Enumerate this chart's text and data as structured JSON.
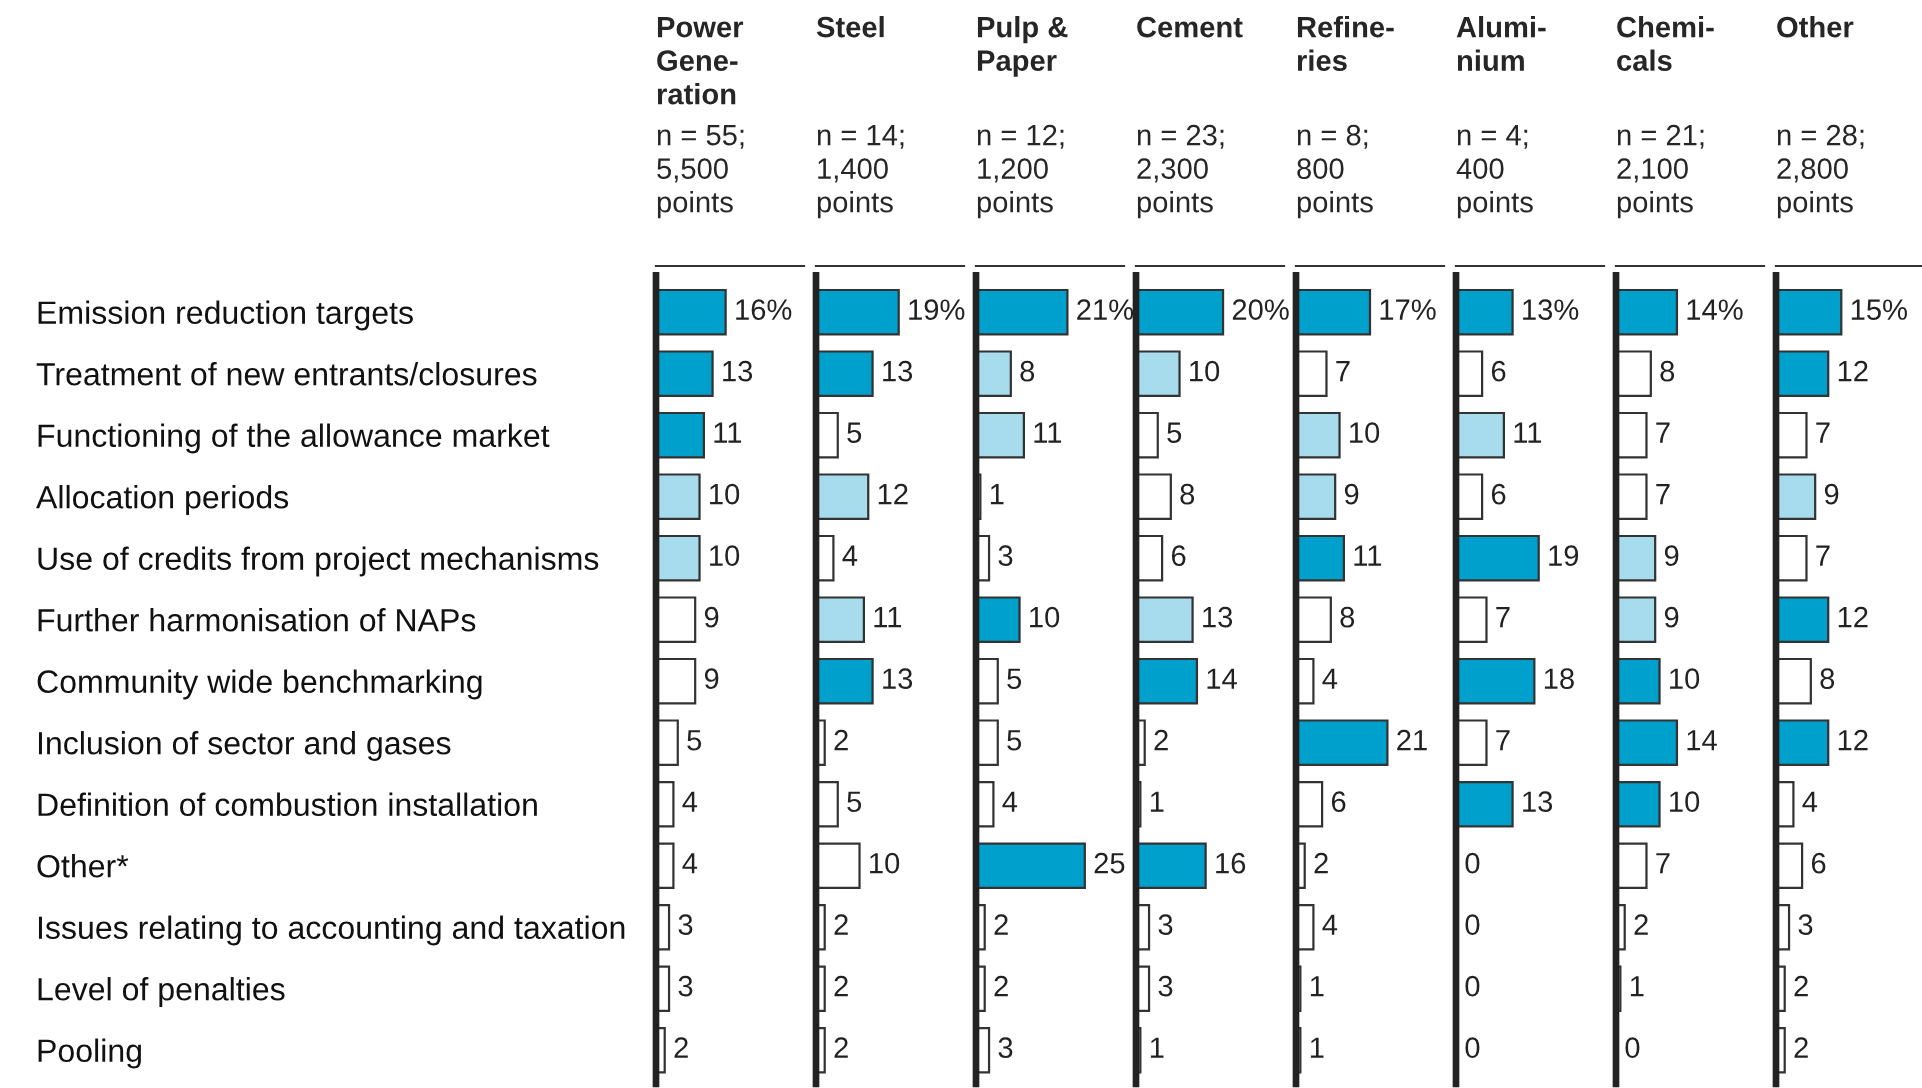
{
  "chart_data": [
    {
      "type": "bar",
      "orientation": "horizontal",
      "title": "Power\nGene-\nration",
      "subtitle": "n = 55;\n5,500\npoints",
      "tick_labels": "y",
      "xlim": [
        0,
        34
      ],
      "categories": [
        "Emission reduction targets",
        "Treatment of new entrants/closures",
        "Functioning of the allowance market",
        "Allocation periods",
        "Use of credits from project mechanisms",
        "Further harmonisation of NAPs",
        "Community wide benchmarking",
        "Inclusion of sector and gases",
        "Definition of combustion installation",
        "Other*",
        "Issues relating to accounting and taxation",
        "Level of penalties",
        "Pooling"
      ],
      "values": [
        16,
        13,
        11,
        10,
        10,
        9,
        9,
        5,
        4,
        4,
        3,
        3,
        2
      ],
      "value_labels": [
        "16%",
        "13",
        "11",
        "10",
        "10",
        "9",
        "9",
        "5",
        "4",
        "4",
        "3",
        "3",
        "2"
      ],
      "colors": [
        "#00a0cc",
        "#00a0cc",
        "#00a0cc",
        "#a6dcec",
        "#a6dcec",
        "#ffffff",
        "#ffffff",
        "#ffffff",
        "#ffffff",
        "#ffffff",
        "#ffffff",
        "#ffffff",
        "#ffffff"
      ]
    },
    {
      "type": "bar",
      "orientation": "horizontal",
      "title": "Steel",
      "subtitle": "n = 14;\n1,400\npoints",
      "tick_labels": false,
      "xlim": [
        0,
        34
      ],
      "values": [
        19,
        13,
        5,
        12,
        4,
        11,
        13,
        2,
        5,
        10,
        2,
        2,
        2
      ],
      "value_labels": [
        "19%",
        "13",
        "5",
        "12",
        "4",
        "11",
        "13",
        "2",
        "5",
        "10",
        "2",
        "2",
        "2"
      ],
      "colors": [
        "#00a0cc",
        "#00a0cc",
        "#ffffff",
        "#a6dcec",
        "#ffffff",
        "#a6dcec",
        "#00a0cc",
        "#ffffff",
        "#ffffff",
        "#ffffff",
        "#ffffff",
        "#ffffff",
        "#ffffff"
      ]
    },
    {
      "type": "bar",
      "orientation": "horizontal",
      "title": "Pulp &\nPaper",
      "subtitle": "n = 12;\n1,200\npoints",
      "tick_labels": false,
      "xlim": [
        0,
        34
      ],
      "values": [
        21,
        8,
        11,
        1,
        3,
        10,
        5,
        5,
        4,
        25,
        2,
        2,
        3
      ],
      "value_labels": [
        "21%",
        "8",
        "11",
        "1",
        "3",
        "10",
        "5",
        "5",
        "4",
        "25",
        "2",
        "2",
        "3"
      ],
      "colors": [
        "#00a0cc",
        "#a6dcec",
        "#a6dcec",
        "#ffffff",
        "#ffffff",
        "#00a0cc",
        "#ffffff",
        "#ffffff",
        "#ffffff",
        "#00a0cc",
        "#ffffff",
        "#ffffff",
        "#ffffff"
      ]
    },
    {
      "type": "bar",
      "orientation": "horizontal",
      "title": "Cement",
      "subtitle": "n = 23;\n2,300\npoints",
      "tick_labels": false,
      "xlim": [
        0,
        34
      ],
      "values": [
        20,
        10,
        5,
        8,
        6,
        13,
        14,
        2,
        1,
        16,
        3,
        3,
        1
      ],
      "value_labels": [
        "20%",
        "10",
        "5",
        "8",
        "6",
        "13",
        "14",
        "2",
        "1",
        "16",
        "3",
        "3",
        "1"
      ],
      "colors": [
        "#00a0cc",
        "#a6dcec",
        "#ffffff",
        "#ffffff",
        "#ffffff",
        "#a6dcec",
        "#00a0cc",
        "#ffffff",
        "#ffffff",
        "#00a0cc",
        "#ffffff",
        "#ffffff",
        "#ffffff"
      ]
    },
    {
      "type": "bar",
      "orientation": "horizontal",
      "title": "Refine-\nries",
      "subtitle": "n = 8;\n800\npoints",
      "tick_labels": false,
      "xlim": [
        0,
        34
      ],
      "values": [
        17,
        7,
        10,
        9,
        11,
        8,
        4,
        21,
        6,
        2,
        4,
        1,
        1
      ],
      "value_labels": [
        "17%",
        "7",
        "10",
        "9",
        "11",
        "8",
        "4",
        "21",
        "6",
        "2",
        "4",
        "1",
        "1"
      ],
      "colors": [
        "#00a0cc",
        "#ffffff",
        "#a6dcec",
        "#a6dcec",
        "#00a0cc",
        "#ffffff",
        "#ffffff",
        "#00a0cc",
        "#ffffff",
        "#ffffff",
        "#ffffff",
        "#ffffff",
        "#ffffff"
      ]
    },
    {
      "type": "bar",
      "orientation": "horizontal",
      "title": "Alumi-\nnium",
      "subtitle": "n = 4;\n400\npoints",
      "tick_labels": false,
      "xlim": [
        0,
        34
      ],
      "values": [
        13,
        6,
        11,
        6,
        19,
        7,
        18,
        7,
        13,
        0,
        0,
        0,
        0
      ],
      "value_labels": [
        "13%",
        "6",
        "11",
        "6",
        "19",
        "7",
        "18",
        "7",
        "13",
        "0",
        "0",
        "0",
        "0"
      ],
      "colors": [
        "#00a0cc",
        "#ffffff",
        "#a6dcec",
        "#ffffff",
        "#00a0cc",
        "#ffffff",
        "#00a0cc",
        "#ffffff",
        "#00a0cc",
        "#ffffff",
        "#ffffff",
        "#ffffff",
        "#ffffff"
      ]
    },
    {
      "type": "bar",
      "orientation": "horizontal",
      "title": "Chemi-\ncals",
      "subtitle": "n = 21;\n2,100\npoints",
      "tick_labels": false,
      "xlim": [
        0,
        34
      ],
      "values": [
        14,
        8,
        7,
        7,
        9,
        9,
        10,
        14,
        10,
        7,
        2,
        1,
        0
      ],
      "value_labels": [
        "14%",
        "8",
        "7",
        "7",
        "9",
        "9",
        "10",
        "14",
        "10",
        "7",
        "2",
        "1",
        "0"
      ],
      "colors": [
        "#00a0cc",
        "#ffffff",
        "#ffffff",
        "#ffffff",
        "#a6dcec",
        "#a6dcec",
        "#00a0cc",
        "#00a0cc",
        "#00a0cc",
        "#ffffff",
        "#ffffff",
        "#ffffff",
        "#ffffff"
      ]
    },
    {
      "type": "bar",
      "orientation": "horizontal",
      "title": "Other",
      "subtitle": "n = 28;\n2,800\npoints",
      "tick_labels": false,
      "xlim": [
        0,
        34
      ],
      "values": [
        15,
        12,
        7,
        9,
        7,
        12,
        8,
        12,
        4,
        6,
        3,
        2,
        2
      ],
      "value_labels": [
        "15%",
        "12",
        "7",
        "9",
        "7",
        "12",
        "8",
        "12",
        "4",
        "6",
        "3",
        "2",
        "2"
      ],
      "colors": [
        "#00a0cc",
        "#00a0cc",
        "#ffffff",
        "#a6dcec",
        "#ffffff",
        "#00a0cc",
        "#ffffff",
        "#00a0cc",
        "#ffffff",
        "#ffffff",
        "#ffffff",
        "#ffffff",
        "#ffffff"
      ]
    }
  ]
}
